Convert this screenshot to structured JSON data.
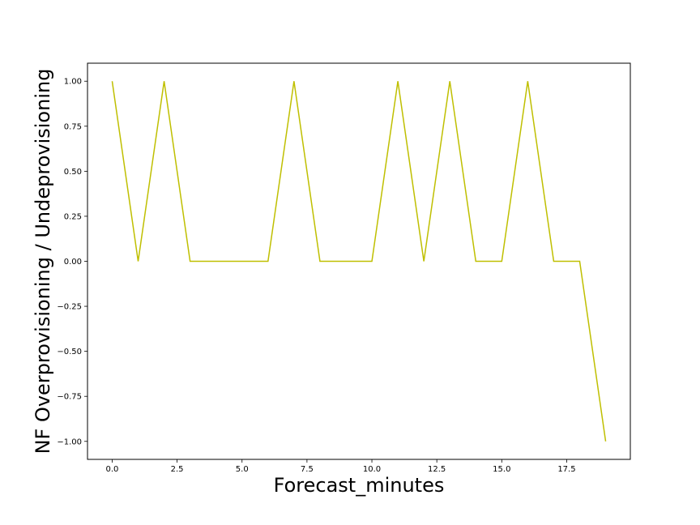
{
  "chart_data": {
    "type": "line",
    "title": "",
    "xlabel": "Forecast_minutes",
    "ylabel": "NF Overprovisioning / Undeprovisioning",
    "xlim": [
      -0.95,
      19.95
    ],
    "ylim": [
      -1.1,
      1.1
    ],
    "grid": false,
    "legend": "none",
    "xticks": [
      0.0,
      2.5,
      5.0,
      7.5,
      10.0,
      12.5,
      15.0,
      17.5
    ],
    "xtick_labels": [
      "0.0",
      "2.5",
      "5.0",
      "7.5",
      "10.0",
      "12.5",
      "15.0",
      "17.5"
    ],
    "yticks": [
      1.0,
      0.75,
      0.5,
      0.25,
      0.0,
      -0.25,
      -0.5,
      -0.75,
      -1.0
    ],
    "ytick_labels": [
      "1.00",
      "0.75",
      "0.50",
      "0.25",
      "0.00",
      "−0.25",
      "−0.50",
      "−0.75",
      "−1.00"
    ],
    "series": [
      {
        "color": "#bfbf00",
        "x": [
          0,
          1,
          2,
          3,
          4,
          5,
          6,
          7,
          8,
          9,
          10,
          11,
          12,
          13,
          14,
          15,
          16,
          17,
          18,
          19
        ],
        "y": [
          1,
          0,
          1,
          0,
          0,
          0,
          0,
          1,
          0,
          0,
          0,
          1,
          0,
          1,
          0,
          0,
          1,
          0,
          0,
          -1
        ]
      }
    ]
  }
}
